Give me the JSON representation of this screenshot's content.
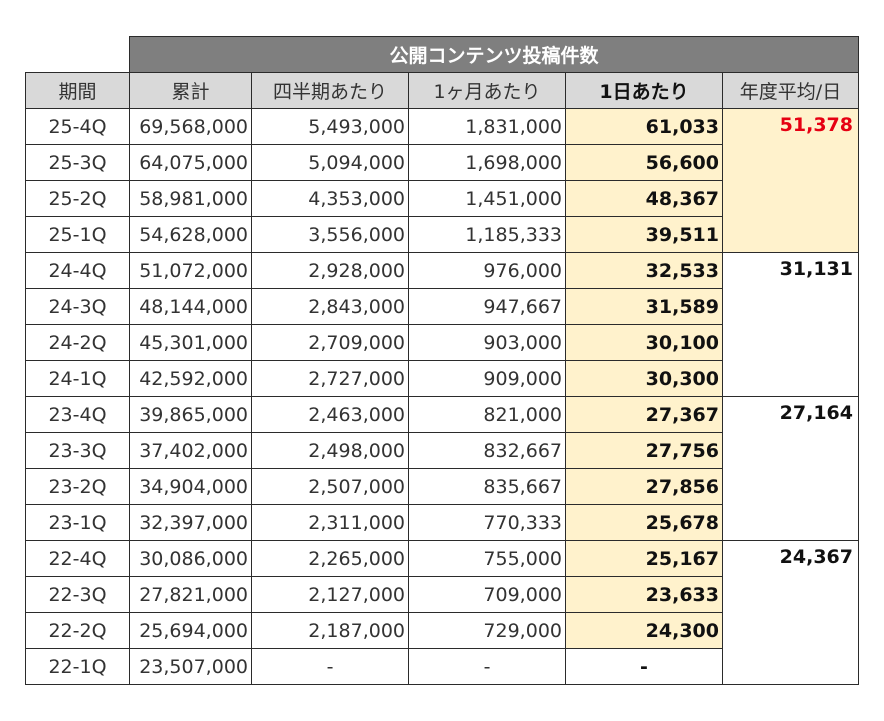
{
  "table": {
    "title": "公開コンテンツ投稿件数",
    "headers": {
      "period": "期間",
      "cumulative": "累計",
      "per_quarter": "四半期あたり",
      "per_month": "1ヶ月あたり",
      "per_day": "1日あたり",
      "yearly_avg": "年度平均/日"
    },
    "rows": [
      {
        "period": "25-4Q",
        "cumulative": "69,568,000",
        "per_quarter": "5,493,000",
        "per_month": "1,831,000",
        "per_day": "61,033"
      },
      {
        "period": "25-3Q",
        "cumulative": "64,075,000",
        "per_quarter": "5,094,000",
        "per_month": "1,698,000",
        "per_day": "56,600"
      },
      {
        "period": "25-2Q",
        "cumulative": "58,981,000",
        "per_quarter": "4,353,000",
        "per_month": "1,451,000",
        "per_day": "48,367"
      },
      {
        "period": "25-1Q",
        "cumulative": "54,628,000",
        "per_quarter": "3,556,000",
        "per_month": "1,185,333",
        "per_day": "39,511"
      },
      {
        "period": "24-4Q",
        "cumulative": "51,072,000",
        "per_quarter": "2,928,000",
        "per_month": "976,000",
        "per_day": "32,533"
      },
      {
        "period": "24-3Q",
        "cumulative": "48,144,000",
        "per_quarter": "2,843,000",
        "per_month": "947,667",
        "per_day": "31,589"
      },
      {
        "period": "24-2Q",
        "cumulative": "45,301,000",
        "per_quarter": "2,709,000",
        "per_month": "903,000",
        "per_day": "30,100"
      },
      {
        "period": "24-1Q",
        "cumulative": "42,592,000",
        "per_quarter": "2,727,000",
        "per_month": "909,000",
        "per_day": "30,300"
      },
      {
        "period": "23-4Q",
        "cumulative": "39,865,000",
        "per_quarter": "2,463,000",
        "per_month": "821,000",
        "per_day": "27,367"
      },
      {
        "period": "23-3Q",
        "cumulative": "37,402,000",
        "per_quarter": "2,498,000",
        "per_month": "832,667",
        "per_day": "27,756"
      },
      {
        "period": "23-2Q",
        "cumulative": "34,904,000",
        "per_quarter": "2,507,000",
        "per_month": "835,667",
        "per_day": "27,856"
      },
      {
        "period": "23-1Q",
        "cumulative": "32,397,000",
        "per_quarter": "2,311,000",
        "per_month": "770,333",
        "per_day": "25,678"
      },
      {
        "period": "22-4Q",
        "cumulative": "30,086,000",
        "per_quarter": "2,265,000",
        "per_month": "755,000",
        "per_day": "25,167"
      },
      {
        "period": "22-3Q",
        "cumulative": "27,821,000",
        "per_quarter": "2,127,000",
        "per_month": "709,000",
        "per_day": "23,633"
      },
      {
        "period": "22-2Q",
        "cumulative": "25,694,000",
        "per_quarter": "2,187,000",
        "per_month": "729,000",
        "per_day": "24,300"
      },
      {
        "period": "22-1Q",
        "cumulative": "23,507,000",
        "per_quarter": "-",
        "per_month": "-",
        "per_day": "-"
      }
    ],
    "yearly_averages": [
      {
        "year": "25",
        "value": "51,378",
        "highlight": "#e60012"
      },
      {
        "year": "24",
        "value": "31,131"
      },
      {
        "year": "23",
        "value": "27,164"
      },
      {
        "year": "22",
        "value": "24,367"
      }
    ],
    "colors": {
      "banner_bg": "#7f7f7f",
      "header_bg": "#d9d9d9",
      "daily_bg": "#fff2cc",
      "highlight_text": "#e60012"
    }
  }
}
